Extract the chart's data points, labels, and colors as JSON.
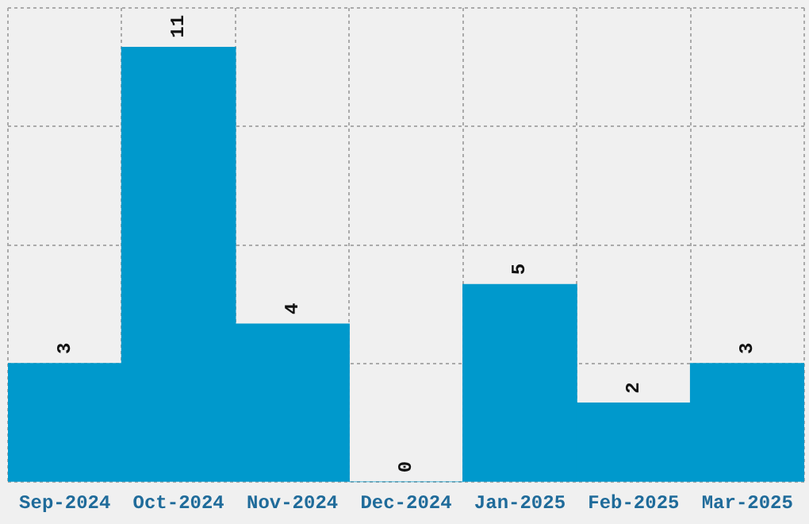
{
  "chart_data": {
    "type": "bar",
    "categories": [
      "Sep-2024",
      "Oct-2024",
      "Nov-2024",
      "Dec-2024",
      "Jan-2025",
      "Feb-2025",
      "Mar-2025"
    ],
    "values": [
      3,
      11,
      4,
      0,
      5,
      2,
      3
    ],
    "color": "#0099cc",
    "ylim": [
      0,
      12
    ],
    "yticks": [
      {
        "value": 0,
        "label": null
      },
      {
        "value": 3,
        "label": null
      },
      {
        "value": 6,
        "label": null
      },
      {
        "value": 9,
        "label": null
      },
      {
        "value": 12,
        "label": null
      }
    ],
    "grid": true,
    "tick_labels": "x",
    "data_labels": true,
    "legend": false
  }
}
